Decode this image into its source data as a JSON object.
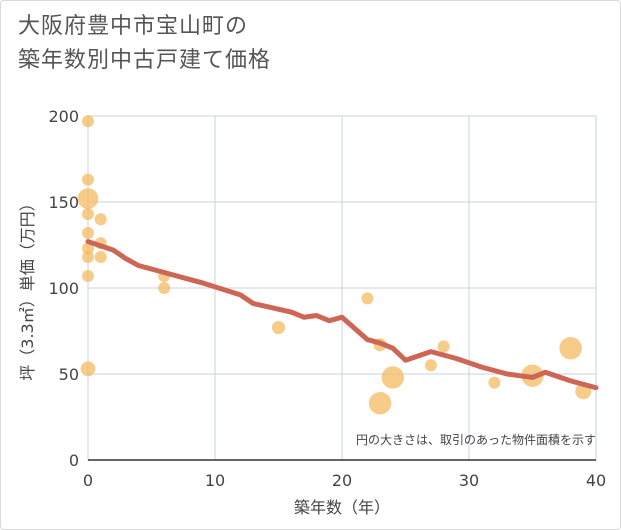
{
  "title": {
    "line1": "大阪府豊中市宝山町の",
    "line2": "築年数別中古戸建て価格"
  },
  "colors": {
    "bubble": "#f4b95b",
    "line": "#cd6655",
    "grid": "#c7d3df",
    "background": "#ffffff"
  },
  "chart_data": {
    "type": "scatter",
    "title": "大阪府豊中市宝山町の築年数別中古戸建て価格",
    "xlabel": "築年数（年）",
    "ylabel": "坪（3.3㎡）単価（万円）",
    "xlim": [
      0,
      40
    ],
    "ylim": [
      0,
      200
    ],
    "x_ticks": [
      "0",
      "10",
      "20",
      "30",
      "40"
    ],
    "y_ticks": [
      "0",
      "50",
      "100",
      "150",
      "200"
    ],
    "note": "円の大きさは、取引のあった物件面積を示す",
    "series": [
      {
        "name": "取引事例",
        "kind": "bubble",
        "points": [
          {
            "x": 0,
            "y": 197,
            "size": 1
          },
          {
            "x": 0,
            "y": 163,
            "size": 1
          },
          {
            "x": 0,
            "y": 152,
            "size": 3
          },
          {
            "x": 0,
            "y": 143,
            "size": 1
          },
          {
            "x": 0,
            "y": 132,
            "size": 1
          },
          {
            "x": 0,
            "y": 123,
            "size": 1
          },
          {
            "x": 0,
            "y": 118,
            "size": 1
          },
          {
            "x": 0,
            "y": 107,
            "size": 1
          },
          {
            "x": 0,
            "y": 53,
            "size": 1.5
          },
          {
            "x": 1,
            "y": 140,
            "size": 1
          },
          {
            "x": 1,
            "y": 126,
            "size": 1
          },
          {
            "x": 1,
            "y": 118,
            "size": 1
          },
          {
            "x": 6,
            "y": 107,
            "size": 1
          },
          {
            "x": 6,
            "y": 100,
            "size": 1
          },
          {
            "x": 15,
            "y": 77,
            "size": 1.2
          },
          {
            "x": 22,
            "y": 94,
            "size": 1
          },
          {
            "x": 23,
            "y": 67,
            "size": 1.2
          },
          {
            "x": 23,
            "y": 33,
            "size": 3.5
          },
          {
            "x": 24,
            "y": 48,
            "size": 3.5
          },
          {
            "x": 27,
            "y": 55,
            "size": 1
          },
          {
            "x": 28,
            "y": 66,
            "size": 1
          },
          {
            "x": 32,
            "y": 45,
            "size": 1
          },
          {
            "x": 35,
            "y": 49,
            "size": 3.5
          },
          {
            "x": 38,
            "y": 65,
            "size": 3.5
          },
          {
            "x": 39,
            "y": 40,
            "size": 1.8
          }
        ]
      },
      {
        "name": "平均",
        "kind": "line",
        "x": [
          0,
          2,
          3,
          4,
          6,
          8,
          9,
          12,
          13,
          16,
          17,
          18,
          19,
          20,
          22,
          23,
          24,
          25,
          27,
          29,
          31,
          33,
          35,
          36,
          38,
          40
        ],
        "y": [
          127,
          122,
          117,
          113,
          109,
          105,
          103,
          96,
          91,
          86,
          83,
          84,
          81,
          83,
          70,
          68,
          65,
          58,
          63,
          59,
          54,
          50,
          48,
          51,
          46,
          42
        ]
      }
    ]
  }
}
